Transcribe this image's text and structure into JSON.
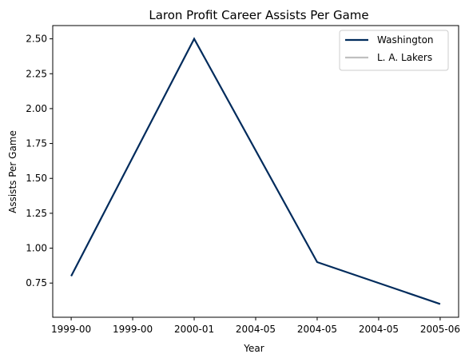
{
  "chart_data": {
    "type": "line",
    "title": "Laron Profit Career Assists Per Game",
    "xlabel": "Year",
    "ylabel": "Assists Per Game",
    "categories": [
      "1999-00",
      "1999-00",
      "2000-01",
      "2004-05",
      "2004-05",
      "2004-05",
      "2005-06"
    ],
    "x_ticks": [
      0,
      1,
      2,
      3,
      4,
      5,
      6
    ],
    "y_ticks": [
      0.75,
      1.0,
      1.25,
      1.5,
      1.75,
      2.0,
      2.25,
      2.5
    ],
    "y_tick_labels": [
      "0.75",
      "1.00",
      "1.25",
      "1.50",
      "1.75",
      "2.00",
      "2.25",
      "2.50"
    ],
    "xlim": [
      -0.3,
      6.3
    ],
    "ylim": [
      0.505,
      2.595
    ],
    "grid": false,
    "legend_position": "top-right",
    "series": [
      {
        "name": "Washington",
        "color": "#002b5c",
        "x": [
          0,
          2,
          4,
          6
        ],
        "values": [
          0.8,
          2.5,
          0.9,
          0.6
        ]
      },
      {
        "name": "L. A. Lakers",
        "color": "#c0c0c0",
        "x": [],
        "values": []
      }
    ]
  }
}
